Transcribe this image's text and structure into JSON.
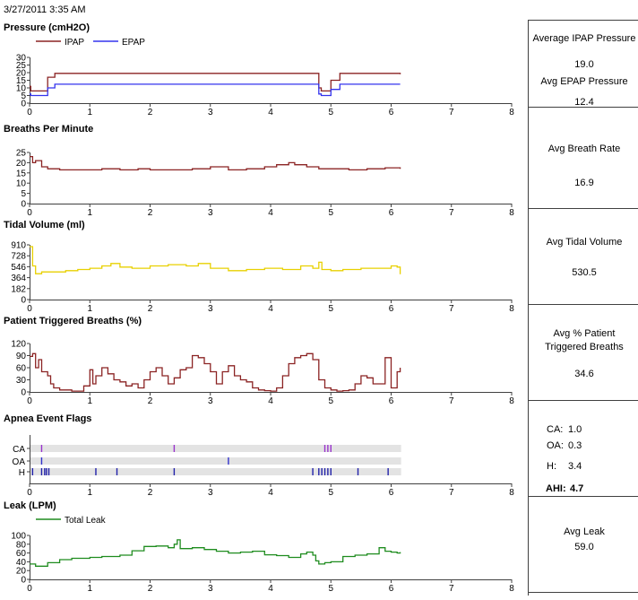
{
  "header": {
    "timestamp": "3/27/2011 3:35 AM"
  },
  "colors": {
    "ipap": "#8B2323",
    "epap": "#3333EE",
    "bpm": "#8B2323",
    "tidal": "#E8D000",
    "ptb": "#8B2323",
    "ca": "#9933CC",
    "oa": "#3333CC",
    "h": "#2222AA",
    "leak": "#1E8C1E",
    "axis": "#404040",
    "track": "#E3E3E3"
  },
  "stats": {
    "pressure": {
      "avg_ipap_label": "Average IPAP Pressure",
      "avg_ipap_value": "19.0",
      "avg_epap_label": "Avg EPAP Pressure",
      "avg_epap_value": "12.4"
    },
    "breath_rate": {
      "label": "Avg Breath Rate",
      "value": "16.9"
    },
    "tidal_volume": {
      "label": "Avg Tidal Volume",
      "value": "530.5"
    },
    "patient_triggered": {
      "label_line1": "Avg % Patient",
      "label_line2": "Triggered Breaths",
      "value": "34.6"
    },
    "apnea": {
      "ca_label": "CA:",
      "ca_value": "1.0",
      "oa_label": "OA:",
      "oa_value": "0.3",
      "h_label": "H:",
      "h_value": "3.4",
      "ahi_label": "AHI:",
      "ahi_value": "4.7"
    },
    "leak": {
      "label": "Avg Leak",
      "value": "59.0"
    }
  },
  "chart_data": [
    {
      "type": "line",
      "title": "Pressure (cmH2O)",
      "xlim": [
        0,
        8
      ],
      "ylim": [
        0,
        30
      ],
      "xticks": [
        0,
        1,
        2,
        3,
        4,
        5,
        6,
        7,
        8
      ],
      "yticks": [
        0,
        5,
        10,
        15,
        20,
        25,
        30
      ],
      "legend": "top-left",
      "series": [
        {
          "name": "IPAP",
          "x": [
            0,
            0.02,
            0.3,
            0.42,
            1,
            2,
            3,
            4,
            4.78,
            4.8,
            4.84,
            5.0,
            5.15,
            5.5,
            6,
            6.15
          ],
          "y": [
            11,
            8,
            17,
            19.5,
            19.5,
            19.5,
            19.5,
            19.5,
            19.5,
            10,
            8,
            15,
            19.5,
            19.5,
            19.5,
            19
          ]
        },
        {
          "name": "EPAP",
          "x": [
            0,
            0.02,
            0.3,
            0.42,
            1,
            2,
            3,
            4,
            4.78,
            4.8,
            4.84,
            5.0,
            5.15,
            5.5,
            6,
            6.15
          ],
          "y": [
            6,
            5,
            10,
            12.4,
            12.4,
            12.4,
            12.4,
            12.4,
            12.4,
            6,
            5,
            9,
            12.4,
            12.4,
            12.4,
            12.4
          ]
        }
      ]
    },
    {
      "type": "line",
      "title": "Breaths Per Minute",
      "xlim": [
        0,
        8
      ],
      "ylim": [
        0,
        25
      ],
      "xticks": [
        0,
        1,
        2,
        3,
        4,
        5,
        6,
        7,
        8
      ],
      "yticks": [
        0,
        5,
        10,
        15,
        20,
        25
      ],
      "series": [
        {
          "x": [
            0,
            0.05,
            0.1,
            0.2,
            0.3,
            0.5,
            0.9,
            1.2,
            1.5,
            1.8,
            2.0,
            2.4,
            2.7,
            3.0,
            3.3,
            3.6,
            3.9,
            4.1,
            4.3,
            4.4,
            4.6,
            4.8,
            5.0,
            5.3,
            5.6,
            5.9,
            6.15
          ],
          "y": [
            23,
            20,
            21,
            18,
            17,
            16.5,
            16.5,
            17,
            16.5,
            17,
            16.5,
            16.5,
            17,
            18,
            16.5,
            17,
            18,
            19,
            20,
            19,
            18,
            17,
            17,
            16.5,
            17,
            17.5,
            17
          ]
        }
      ]
    },
    {
      "type": "line",
      "title": "Tidal Volume (ml)",
      "xlim": [
        0,
        8
      ],
      "ylim": [
        0,
        910
      ],
      "xticks": [
        0,
        1,
        2,
        3,
        4,
        5,
        6,
        7,
        8
      ],
      "yticks": [
        0,
        182,
        364,
        546,
        728,
        910
      ],
      "series": [
        {
          "x": [
            0,
            0.05,
            0.1,
            0.2,
            0.4,
            0.6,
            0.8,
            1.0,
            1.2,
            1.35,
            1.5,
            1.7,
            2.0,
            2.3,
            2.6,
            2.8,
            3.0,
            3.3,
            3.6,
            3.9,
            4.2,
            4.5,
            4.7,
            4.8,
            4.85,
            5.0,
            5.2,
            5.5,
            5.8,
            6.0,
            6.1,
            6.15
          ],
          "y": [
            880,
            560,
            430,
            460,
            460,
            480,
            500,
            520,
            560,
            600,
            540,
            520,
            560,
            580,
            560,
            600,
            520,
            480,
            500,
            520,
            500,
            560,
            520,
            620,
            500,
            480,
            500,
            520,
            520,
            560,
            540,
            420
          ]
        }
      ]
    },
    {
      "type": "line",
      "title": "Patient Triggered Breaths (%)",
      "xlim": [
        0,
        8
      ],
      "ylim": [
        0,
        120
      ],
      "xticks": [
        0,
        1,
        2,
        3,
        4,
        5,
        6,
        7,
        8
      ],
      "yticks": [
        0,
        30,
        60,
        90,
        120
      ],
      "series": [
        {
          "x": [
            0,
            0.05,
            0.1,
            0.15,
            0.2,
            0.3,
            0.35,
            0.4,
            0.5,
            0.7,
            0.9,
            1.0,
            1.05,
            1.1,
            1.2,
            1.3,
            1.4,
            1.5,
            1.6,
            1.7,
            1.8,
            1.9,
            2.0,
            2.1,
            2.2,
            2.3,
            2.4,
            2.5,
            2.6,
            2.7,
            2.8,
            2.9,
            3.0,
            3.1,
            3.2,
            3.3,
            3.4,
            3.5,
            3.6,
            3.7,
            3.8,
            3.9,
            4.0,
            4.1,
            4.2,
            4.3,
            4.4,
            4.5,
            4.6,
            4.7,
            4.8,
            4.9,
            5.0,
            5.1,
            5.2,
            5.3,
            5.4,
            5.5,
            5.6,
            5.7,
            5.8,
            5.9,
            6.0,
            6.1,
            6.15
          ],
          "y": [
            88,
            95,
            60,
            80,
            50,
            40,
            20,
            10,
            5,
            2,
            15,
            55,
            20,
            40,
            60,
            45,
            30,
            25,
            15,
            20,
            10,
            30,
            50,
            60,
            40,
            20,
            35,
            55,
            60,
            90,
            85,
            70,
            50,
            20,
            50,
            65,
            40,
            30,
            25,
            10,
            5,
            3,
            2,
            10,
            40,
            70,
            85,
            90,
            95,
            80,
            30,
            10,
            5,
            2,
            3,
            5,
            20,
            40,
            35,
            20,
            20,
            85,
            10,
            50,
            60
          ]
        }
      ]
    },
    {
      "type": "scatter",
      "title": "Apnea Event Flags",
      "xlim": [
        0,
        8
      ],
      "xticks": [
        0,
        1,
        2,
        3,
        4,
        5,
        6,
        7,
        8
      ],
      "categories": [
        "CA",
        "OA",
        "H"
      ],
      "series": [
        {
          "name": "CA",
          "x": [
            0.2,
            2.4,
            4.9,
            4.95,
            5.0
          ]
        },
        {
          "name": "OA",
          "x": [
            0.2,
            3.3
          ]
        },
        {
          "name": "H",
          "x": [
            0.05,
            0.2,
            0.25,
            0.28,
            0.32,
            1.1,
            1.45,
            2.4,
            4.7,
            4.8,
            4.85,
            4.9,
            4.95,
            5.0,
            5.45,
            5.95
          ]
        }
      ]
    },
    {
      "type": "line",
      "title": "Leak (LPM)",
      "xlim": [
        0,
        8
      ],
      "ylim": [
        0,
        100
      ],
      "xticks": [
        0,
        1,
        2,
        3,
        4,
        5,
        6,
        7,
        8
      ],
      "yticks": [
        0,
        20,
        40,
        60,
        80,
        100
      ],
      "legend": "top-left",
      "series": [
        {
          "name": "Total Leak",
          "x": [
            0,
            0.1,
            0.3,
            0.5,
            0.7,
            1.0,
            1.2,
            1.5,
            1.7,
            1.9,
            2.1,
            2.3,
            2.4,
            2.45,
            2.5,
            2.7,
            2.9,
            3.1,
            3.3,
            3.5,
            3.7,
            3.9,
            4.1,
            4.3,
            4.5,
            4.6,
            4.7,
            4.75,
            4.8,
            4.9,
            5.0,
            5.2,
            5.4,
            5.6,
            5.8,
            5.9,
            6.0,
            6.1,
            6.15
          ],
          "y": [
            35,
            30,
            38,
            45,
            48,
            50,
            52,
            55,
            65,
            75,
            76,
            72,
            80,
            90,
            70,
            72,
            68,
            64,
            60,
            62,
            64,
            56,
            54,
            50,
            58,
            62,
            55,
            42,
            35,
            38,
            40,
            52,
            55,
            58,
            72,
            64,
            62,
            60,
            62
          ]
        }
      ]
    }
  ]
}
